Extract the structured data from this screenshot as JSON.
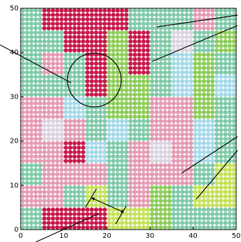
{
  "chart_data": {
    "type": "dotgrid",
    "palette": [
      "#7fc9a8",
      "#c8174a",
      "#e39ab3",
      "#8dcc5a",
      "#a6d9e8",
      "#dcd3e0",
      "#c5e05a"
    ],
    "rows": [
      [
        0,
        1,
        1,
        1,
        1,
        0,
        0,
        0,
        2,
        0
      ],
      [
        0,
        0,
        1,
        1,
        3,
        1,
        0,
        5,
        0,
        3
      ],
      [
        0,
        2,
        0,
        1,
        3,
        1,
        0,
        4,
        3,
        0
      ],
      [
        0,
        0,
        0,
        1,
        3,
        3,
        0,
        4,
        3,
        4
      ],
      [
        2,
        2,
        4,
        0,
        3,
        3,
        2,
        2,
        3,
        0
      ],
      [
        2,
        5,
        2,
        0,
        4,
        0,
        2,
        2,
        4,
        0
      ],
      [
        2,
        2,
        1,
        4,
        0,
        2,
        5,
        2,
        4,
        0
      ],
      [
        0,
        2,
        2,
        2,
        0,
        2,
        2,
        2,
        0,
        6
      ],
      [
        2,
        2,
        0,
        6,
        0,
        2,
        3,
        0,
        6,
        6
      ],
      [
        0,
        1,
        1,
        1,
        6,
        6,
        3,
        0,
        0,
        0
      ]
    ],
    "xlim": [
      0,
      50
    ],
    "ylim": [
      0,
      50
    ],
    "xticks": [
      0,
      10,
      20,
      30,
      40,
      50
    ],
    "yticks": [
      0,
      10,
      20,
      30,
      40,
      50
    ]
  }
}
